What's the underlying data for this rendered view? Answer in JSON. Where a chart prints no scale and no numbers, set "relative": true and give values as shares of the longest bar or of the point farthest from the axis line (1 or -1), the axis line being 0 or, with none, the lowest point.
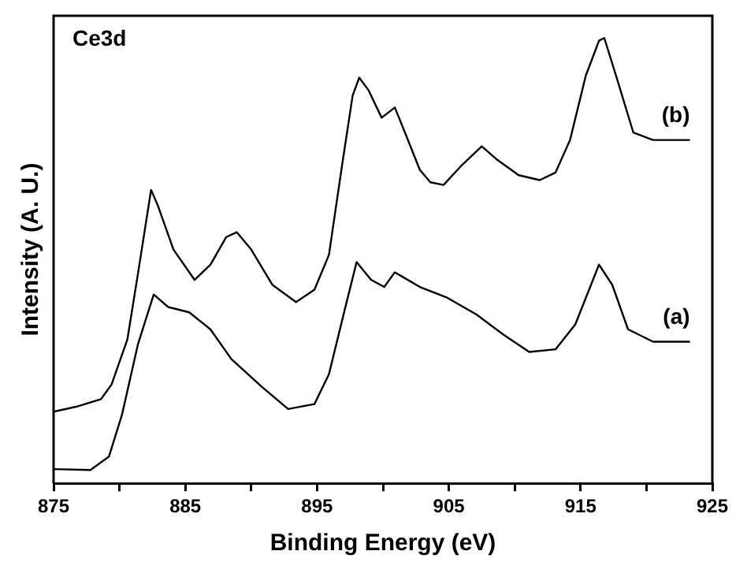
{
  "chart_data": {
    "type": "line",
    "relative": true,
    "xlabel": "Binding Energy (eV)",
    "ylabel": "Intensity (A. U.)",
    "xlim": [
      875,
      925
    ],
    "xticks": [
      875,
      {
        "value": 880,
        "label": null
      },
      885,
      {
        "value": 890,
        "label": null
      },
      895,
      {
        "value": 900,
        "label": null
      },
      905,
      {
        "value": 910,
        "label": null
      },
      915,
      {
        "value": 920,
        "label": null
      },
      925
    ],
    "grid": false,
    "legend": false,
    "marker": "none",
    "line_style": "solid",
    "annotations": [
      "Ce3d"
    ],
    "series": [
      {
        "name": "(b)",
        "color": "#000000",
        "x": [
          875.0,
          876.7,
          878.6,
          879.4,
          880.6,
          881.4,
          882.4,
          882.9,
          884.1,
          885.7,
          886.9,
          888.1,
          888.9,
          890.0,
          891.6,
          893.4,
          894.8,
          895.9,
          896.9,
          897.7,
          898.2,
          898.9,
          899.9,
          900.9,
          901.6,
          902.8,
          903.6,
          904.6,
          906.0,
          907.5,
          908.7,
          910.3,
          911.9,
          913.1,
          914.2,
          915.4,
          916.4,
          916.8,
          917.8,
          919.0,
          920.5,
          923.3
        ],
        "values": [
          0.161,
          0.172,
          0.189,
          0.222,
          0.323,
          0.47,
          0.659,
          0.625,
          0.525,
          0.457,
          0.491,
          0.553,
          0.564,
          0.525,
          0.446,
          0.407,
          0.435,
          0.513,
          0.715,
          0.871,
          0.911,
          0.883,
          0.821,
          0.844,
          0.793,
          0.704,
          0.676,
          0.67,
          0.715,
          0.757,
          0.726,
          0.692,
          0.681,
          0.698,
          0.771,
          0.916,
          0.994,
          1,
          0.905,
          0.788,
          0.771,
          0.771
        ]
      },
      {
        "name": "(a)",
        "color": "#000000",
        "x": [
          875.0,
          877.8,
          879.2,
          880.2,
          881.4,
          882.6,
          883.7,
          885.3,
          886.9,
          888.5,
          890.8,
          892.8,
          894.8,
          895.9,
          897.1,
          898.0,
          899.1,
          900.1,
          900.9,
          902.8,
          904.8,
          907.1,
          909.1,
          911.1,
          913.1,
          914.6,
          916.4,
          917.4,
          918.6,
          920.5,
          923.3
        ],
        "values": [
          0.032,
          0.03,
          0.06,
          0.155,
          0.312,
          0.424,
          0.396,
          0.384,
          0.346,
          0.279,
          0.217,
          0.167,
          0.178,
          0.245,
          0.39,
          0.497,
          0.457,
          0.441,
          0.474,
          0.441,
          0.418,
          0.379,
          0.335,
          0.295,
          0.301,
          0.357,
          0.491,
          0.446,
          0.346,
          0.318,
          0.318
        ]
      }
    ]
  }
}
